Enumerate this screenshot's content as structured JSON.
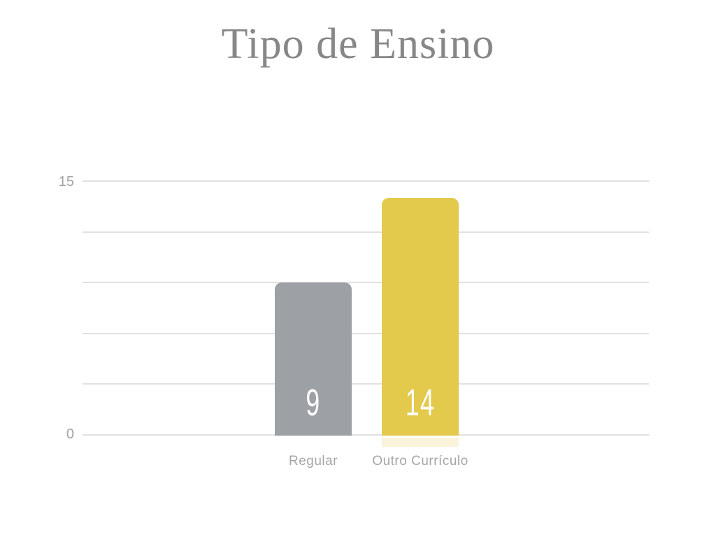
{
  "page": {
    "background": "#FFFFFF"
  },
  "chart_data": {
    "type": "bar",
    "title": "Tipo de Ensino",
    "categories": [
      "Regular",
      "Outro Currículo"
    ],
    "values": [
      9,
      14
    ],
    "bar_colors": [
      "#9DA1A6",
      "#E3C94C"
    ],
    "value_label_color": "#FFFFFF",
    "xlabel": "",
    "ylabel": "",
    "ylim": [
      0,
      15
    ],
    "ytick_top_label": "15",
    "ytick_bottom_label": "0",
    "gridline_count": 6,
    "grid": true,
    "legend": false,
    "colors": {
      "title_text": "#878787",
      "axis_tick_text": "#A2A2A2",
      "category_text": "#A6A6A6",
      "gridline": "#E1E1E1"
    }
  }
}
